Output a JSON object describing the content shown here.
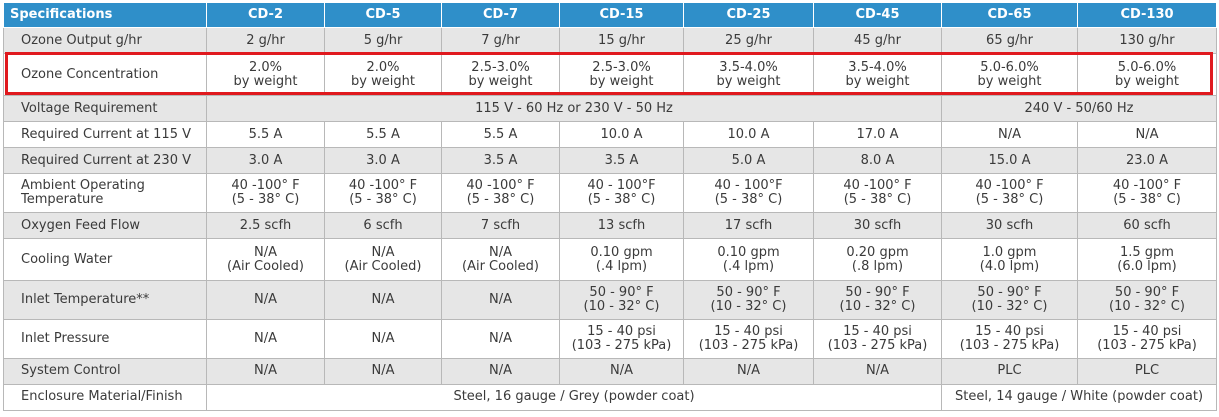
{
  "table": {
    "header": [
      "Specifications",
      "CD-2",
      "CD-5",
      "CD-7",
      "CD-15",
      "CD-25",
      "CD-45",
      "CD-65",
      "CD-130"
    ],
    "rows": [
      {
        "label": "Ozone Output g/hr",
        "cells": [
          [
            "2 g/hr"
          ],
          [
            "5 g/hr"
          ],
          [
            "7 g/hr"
          ],
          [
            "15 g/hr"
          ],
          [
            "25 g/hr"
          ],
          [
            "45 g/hr"
          ],
          [
            "65 g/hr"
          ],
          [
            "130 g/hr"
          ]
        ]
      },
      {
        "label": "Ozone Concentration",
        "cells": [
          [
            "2.0%",
            "by weight"
          ],
          [
            "2.0%",
            "by weight"
          ],
          [
            "2.5-3.0%",
            "by weight"
          ],
          [
            "2.5-3.0%",
            "by weight"
          ],
          [
            "3.5-4.0%",
            "by weight"
          ],
          [
            "3.5-4.0%",
            "by weight"
          ],
          [
            "5.0-6.0%",
            "by weight"
          ],
          [
            "5.0-6.0%",
            "by weight"
          ]
        ]
      },
      {
        "label": "Voltage Requirement",
        "merged": [
          {
            "text": "115 V - 60 Hz or 230 V - 50 Hz",
            "span": 6
          },
          {
            "text": "240 V - 50/60 Hz",
            "span": 2
          }
        ]
      },
      {
        "label": "Required Current at 115 V",
        "cells": [
          [
            "5.5 A"
          ],
          [
            "5.5 A"
          ],
          [
            "5.5 A"
          ],
          [
            "10.0 A"
          ],
          [
            "10.0 A"
          ],
          [
            "17.0 A"
          ],
          [
            "N/A"
          ],
          [
            "N/A"
          ]
        ]
      },
      {
        "label": "Required Current at 230 V",
        "cells": [
          [
            "3.0 A"
          ],
          [
            "3.0 A"
          ],
          [
            "3.5 A"
          ],
          [
            "3.5 A"
          ],
          [
            "5.0 A"
          ],
          [
            "8.0 A"
          ],
          [
            "15.0 A"
          ],
          [
            "23.0 A"
          ]
        ]
      },
      {
        "label": [
          "Ambient Operating",
          "Temperature"
        ],
        "cells": [
          [
            "40 -100° F",
            "(5 - 38° C)"
          ],
          [
            "40 -100° F",
            "(5 - 38° C)"
          ],
          [
            "40 -100° F",
            "(5 - 38° C)"
          ],
          [
            "40 - 100°F",
            "(5 - 38° C)"
          ],
          [
            "40 - 100°F",
            "(5 - 38° C)"
          ],
          [
            "40 -100° F",
            "(5 - 38° C)"
          ],
          [
            "40 -100° F",
            "(5 - 38° C)"
          ],
          [
            "40 -100° F",
            "(5 - 38° C)"
          ]
        ]
      },
      {
        "label": "Oxygen Feed Flow",
        "cells": [
          [
            "2.5 scfh"
          ],
          [
            "6 scfh"
          ],
          [
            "7 scfh"
          ],
          [
            "13 scfh"
          ],
          [
            "17 scfh"
          ],
          [
            "30 scfh"
          ],
          [
            "30 scfh"
          ],
          [
            "60 scfh"
          ]
        ]
      },
      {
        "label": "Cooling Water",
        "cells": [
          [
            "N/A",
            "(Air Cooled)"
          ],
          [
            "N/A",
            "(Air Cooled)"
          ],
          [
            "N/A",
            "(Air Cooled)"
          ],
          [
            "0.10 gpm",
            "(.4 lpm)"
          ],
          [
            "0.10 gpm",
            "(.4 lpm)"
          ],
          [
            "0.20 gpm",
            "(.8 lpm)"
          ],
          [
            "1.0 gpm",
            "(4.0 lpm)"
          ],
          [
            "1.5 gpm",
            "(6.0 lpm)"
          ]
        ]
      },
      {
        "label": "Inlet Temperature**",
        "cells": [
          [
            "N/A"
          ],
          [
            "N/A"
          ],
          [
            "N/A"
          ],
          [
            "50 - 90° F",
            "(10 - 32° C)"
          ],
          [
            "50 - 90° F",
            "(10 - 32° C)"
          ],
          [
            "50 - 90° F",
            "(10 - 32° C)"
          ],
          [
            "50 - 90° F",
            "(10 - 32° C)"
          ],
          [
            "50 - 90° F",
            "(10 - 32° C)"
          ]
        ]
      },
      {
        "label": "Inlet Pressure",
        "cells": [
          [
            "N/A"
          ],
          [
            "N/A"
          ],
          [
            "N/A"
          ],
          [
            "15 - 40 psi",
            "(103 - 275 kPa)"
          ],
          [
            "15 - 40 psi",
            "(103 - 275 kPa)"
          ],
          [
            "15 - 40 psi",
            "(103 - 275 kPa)"
          ],
          [
            "15 - 40 psi",
            "(103 - 275 kPa)"
          ],
          [
            "15 - 40 psi",
            "(103 - 275 kPa)"
          ]
        ]
      },
      {
        "label": "System Control",
        "cells": [
          [
            "N/A"
          ],
          [
            "N/A"
          ],
          [
            "N/A"
          ],
          [
            "N/A"
          ],
          [
            "N/A"
          ],
          [
            "N/A"
          ],
          [
            "PLC"
          ],
          [
            "PLC"
          ]
        ]
      },
      {
        "label": "Enclosure Material/Finish",
        "merged": [
          {
            "text": "Steel, 16 gauge / Grey (powder coat)",
            "span": 6
          },
          {
            "text": "Steel, 14 gauge / White (powder coat)",
            "span": 2
          }
        ]
      }
    ]
  },
  "highlight_color": "#e0191e",
  "header_color": "#2f8fc9"
}
